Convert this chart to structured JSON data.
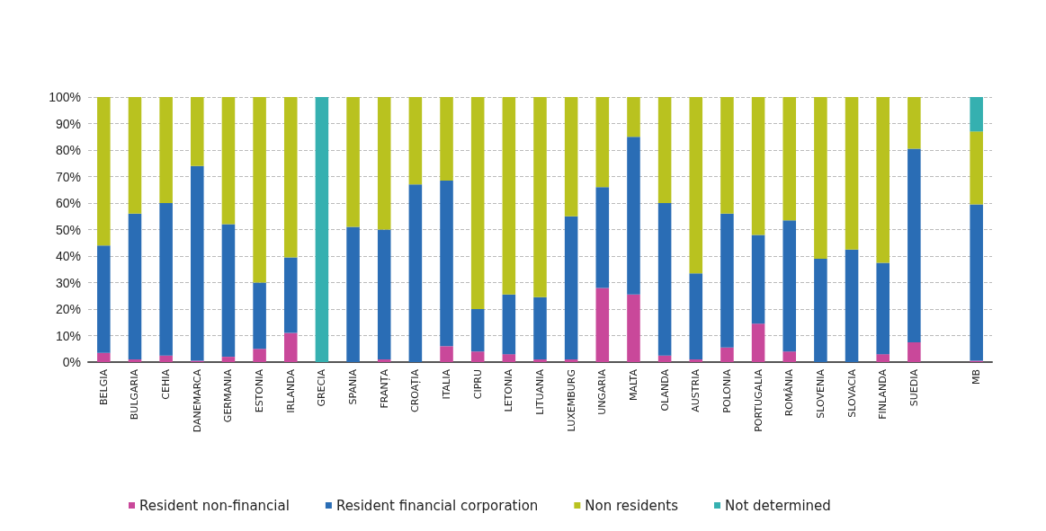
{
  "chart_data": {
    "type": "bar",
    "stacked": true,
    "categories": [
      "BELGIA",
      "BULGARIA",
      "CEHIA",
      "DANEMARCA",
      "GERMANIA",
      "ESTONIA",
      "IRLANDA",
      "GRECIA",
      "SPANIA",
      "FRANȚA",
      "CROAȚIA",
      "ITALIA",
      "CIPRU",
      "LETONIA",
      "LITUANIA",
      "LUXEMBURG",
      "UNGARIA",
      "MALTA",
      "OLANDA",
      "AUSTRIA",
      "POLONIA",
      "PORTUGALIA",
      "ROMÂNIA",
      "SLOVENIA",
      "SLOVACIA",
      "FINLANDA",
      "SUEDIA",
      null,
      "MB"
    ],
    "series": [
      {
        "name": "Resident non-financial",
        "color": "#c9489a",
        "values": [
          3.5,
          1,
          2.5,
          0.5,
          2,
          5,
          11,
          0,
          0,
          1,
          0,
          6,
          4,
          3,
          1,
          1,
          28,
          25.5,
          2.5,
          1,
          5.5,
          14.5,
          4,
          0,
          0,
          3,
          7.5,
          null,
          0.5
        ]
      },
      {
        "name": "Resident financial corporation",
        "color": "#2a6db5",
        "values": [
          40.5,
          55,
          57.5,
          73.5,
          50,
          25,
          28.5,
          0,
          51,
          49,
          67,
          62.5,
          16,
          22.5,
          23.5,
          54,
          38,
          59.5,
          57.5,
          32.5,
          50.5,
          33.5,
          49.5,
          39,
          42.5,
          34.5,
          73,
          null,
          59
        ]
      },
      {
        "name": "Non residents",
        "color": "#b9c21f",
        "values": [
          56,
          44,
          40,
          26,
          48,
          70,
          60.5,
          0,
          49,
          50,
          33,
          31.5,
          80,
          74.5,
          75.5,
          45,
          34,
          15,
          40,
          66.5,
          44,
          52,
          46.5,
          61,
          57.5,
          62.5,
          19.5,
          null,
          27.5
        ]
      },
      {
        "name": "Not determined",
        "color": "#35b0b0",
        "values": [
          0,
          0,
          0,
          0,
          0,
          0,
          0,
          100,
          0,
          0,
          0,
          0,
          0,
          0,
          0,
          0,
          0,
          0,
          0,
          0,
          0,
          0,
          0,
          0,
          0,
          0,
          0,
          null,
          13
        ]
      }
    ],
    "ylim": [
      0,
      100
    ],
    "yticks": [
      {
        "value": 0,
        "label": "0%"
      },
      {
        "value": 10,
        "label": "10%"
      },
      {
        "value": 20,
        "label": "20%"
      },
      {
        "value": 30,
        "label": "30%"
      },
      {
        "value": 40,
        "label": "40%"
      },
      {
        "value": 50,
        "label": "50%"
      },
      {
        "value": 60,
        "label": "60%"
      },
      {
        "value": 70,
        "label": "70%"
      },
      {
        "value": 80,
        "label": "80%"
      },
      {
        "value": 90,
        "label": "90%"
      },
      {
        "value": 100,
        "label": "100%"
      }
    ],
    "grid": "y",
    "legend": "bottom"
  }
}
